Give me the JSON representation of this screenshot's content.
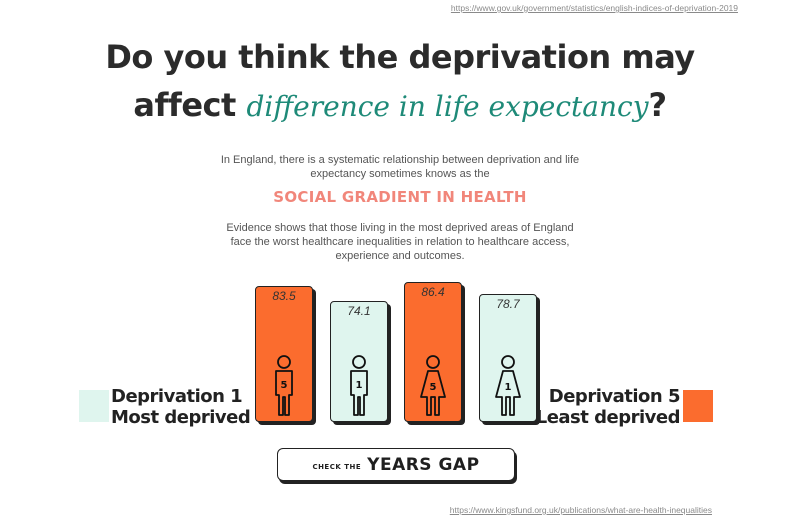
{
  "sources": {
    "top": "https://www.gov.uk/government/statistics/english-indices-of-deprivation-2019",
    "bottom": "https://www.kingsfund.org.uk/publications/what-are-health-inequalities"
  },
  "headline": {
    "line1": "Do you think the deprivation may",
    "line2_prefix": "affect",
    "line2_script": "difference in life expectancy",
    "line2_suffix": "?"
  },
  "intro": "In England, there is a systematic relationship between deprivation and life expectancy sometimes knows as the",
  "highlight": "SOCIAL GRADIENT IN HEALTH",
  "evidence": "Evidence shows that those living in the most deprived areas of England face the worst healthcare inequalities in relation to healthcare access, experience and outcomes.",
  "bars": [
    {
      "value": "83.5",
      "figure_number": "5",
      "gender": "male",
      "color": "#fb6c2e",
      "icon": "man-icon"
    },
    {
      "value": "74.1",
      "figure_number": "1",
      "gender": "male",
      "color": "#dff5ee",
      "icon": "man-icon"
    },
    {
      "value": "86.4",
      "figure_number": "5",
      "gender": "female",
      "color": "#fb6c2e",
      "icon": "woman-icon"
    },
    {
      "value": "78.7",
      "figure_number": "1",
      "gender": "female",
      "color": "#dff5ee",
      "icon": "woman-icon"
    }
  ],
  "legend": {
    "left": {
      "line1": "Deprivation 1",
      "line2": "Most deprived",
      "color": "#dff5ee"
    },
    "right": {
      "line1": "Deprivation 5",
      "line2": "Least deprived",
      "color": "#fb6c2e"
    }
  },
  "button": {
    "small": "CHECK THE",
    "big": "YEARS GAP"
  },
  "colors": {
    "accent_teal": "#1e8a78",
    "highlight_salmon": "#f1867a",
    "orange": "#fb6c2e",
    "mint": "#dff5ee"
  }
}
